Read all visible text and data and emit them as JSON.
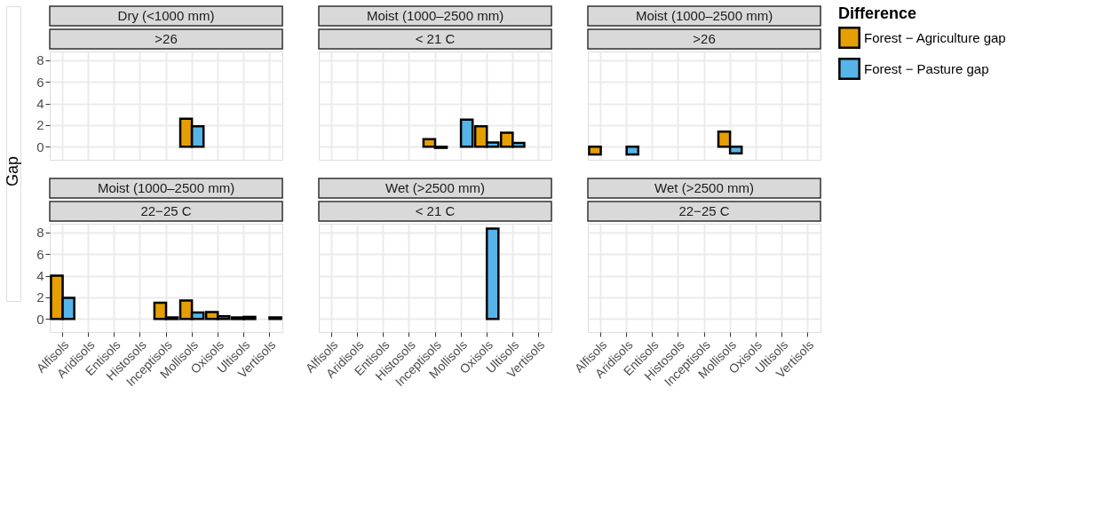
{
  "chart_data": [
    {
      "type": "bar",
      "title": "Dry (<1000 mm)",
      "subtitle": ">26",
      "ylabel": "Gap",
      "legend_title": "Difference",
      "legend": "right",
      "grid": true,
      "tick_labels": "y",
      "ylim": [
        -1.2,
        8.8
      ],
      "yticks": [
        0,
        2,
        4,
        6,
        8
      ],
      "categories": [
        "Alfisols",
        "Aridisols",
        "Entisols",
        "Histosols",
        "Inceptisols",
        "Mollisols",
        "Oxisols",
        "Ultisols",
        "Vertisols"
      ],
      "series": [
        {
          "name": "Forest − Agriculture gap",
          "color": "#e69f00",
          "values": [
            null,
            null,
            null,
            null,
            null,
            2.6,
            null,
            null,
            null
          ]
        },
        {
          "name": "Forest − Pasture gap",
          "color": "#56b4e9",
          "values": [
            null,
            null,
            null,
            null,
            null,
            1.9,
            null,
            null,
            null
          ]
        }
      ]
    },
    {
      "type": "bar",
      "title": "Moist (1000–2500 mm)",
      "subtitle": "< 21 C",
      "grid": true,
      "tick_labels": false,
      "ylim": [
        -1.2,
        8.8
      ],
      "yticks": [
        0,
        2,
        4,
        6,
        8
      ],
      "categories": [
        "Alfisols",
        "Aridisols",
        "Entisols",
        "Histosols",
        "Inceptisols",
        "Mollisols",
        "Oxisols",
        "Ultisols",
        "Vertisols"
      ],
      "series": [
        {
          "name": "Forest − Agriculture gap",
          "color": "#e69f00",
          "values": [
            null,
            null,
            null,
            null,
            0.7,
            null,
            1.9,
            1.3,
            null
          ]
        },
        {
          "name": "Forest − Pasture gap",
          "color": "#56b4e9",
          "values": [
            null,
            null,
            null,
            null,
            -0.1,
            2.5,
            0.4,
            0.35,
            null
          ]
        }
      ]
    },
    {
      "type": "bar",
      "title": "Moist (1000–2500 mm)",
      "subtitle": ">26",
      "grid": true,
      "tick_labels": false,
      "ylim": [
        -1.2,
        8.8
      ],
      "yticks": [
        0,
        2,
        4,
        6,
        8
      ],
      "categories": [
        "Alfisols",
        "Aridisols",
        "Entisols",
        "Histosols",
        "Inceptisols",
        "Mollisols",
        "Oxisols",
        "Ultisols",
        "Vertisols"
      ],
      "series": [
        {
          "name": "Forest − Agriculture gap",
          "color": "#e69f00",
          "values": [
            -0.7,
            null,
            null,
            null,
            null,
            1.4,
            null,
            null,
            null
          ]
        },
        {
          "name": "Forest − Pasture gap",
          "color": "#56b4e9",
          "values": [
            null,
            -0.7,
            null,
            null,
            null,
            -0.6,
            null,
            null,
            null
          ]
        }
      ]
    },
    {
      "type": "bar",
      "title": "Moist (1000–2500 mm)",
      "subtitle": "22−25 C",
      "grid": true,
      "ylim": [
        -1.2,
        8.8
      ],
      "yticks": [
        0,
        2,
        4,
        6,
        8
      ],
      "categories": [
        "Alfisols",
        "Aridisols",
        "Entisols",
        "Histosols",
        "Inceptisols",
        "Mollisols",
        "Oxisols",
        "Ultisols",
        "Vertisols"
      ],
      "series": [
        {
          "name": "Forest − Agriculture gap",
          "color": "#e69f00",
          "values": [
            4.0,
            null,
            null,
            null,
            1.5,
            1.7,
            0.65,
            0.15,
            null
          ]
        },
        {
          "name": "Forest − Pasture gap",
          "color": "#56b4e9",
          "values": [
            1.95,
            null,
            null,
            null,
            0.15,
            0.6,
            0.25,
            0.2,
            0.15
          ]
        }
      ]
    },
    {
      "type": "bar",
      "title": "Wet (>2500 mm)",
      "subtitle": "< 21 C",
      "grid": true,
      "tick_labels": "x",
      "ylim": [
        -1.2,
        8.8
      ],
      "yticks": [
        0,
        2,
        4,
        6,
        8
      ],
      "categories": [
        "Alfisols",
        "Aridisols",
        "Entisols",
        "Histosols",
        "Inceptisols",
        "Mollisols",
        "Oxisols",
        "Ultisols",
        "Vertisols"
      ],
      "series": [
        {
          "name": "Forest − Agriculture gap",
          "color": "#e69f00",
          "values": [
            null,
            null,
            null,
            null,
            null,
            null,
            null,
            null,
            null
          ]
        },
        {
          "name": "Forest − Pasture gap",
          "color": "#56b4e9",
          "values": [
            null,
            null,
            null,
            null,
            null,
            null,
            8.35,
            null,
            null
          ]
        }
      ]
    },
    {
      "type": "bar",
      "title": "Wet (>2500 mm)",
      "subtitle": "22−25 C",
      "grid": true,
      "tick_labels": "x",
      "ylim": [
        -1.2,
        8.8
      ],
      "yticks": [
        0,
        2,
        4,
        6,
        8
      ],
      "categories": [
        "Alfisols",
        "Aridisols",
        "Entisols",
        "Histosols",
        "Inceptisols",
        "Mollisols",
        "Oxisols",
        "Ultisols",
        "Vertisols"
      ],
      "series": [
        {
          "name": "Forest − Agriculture gap",
          "color": "#e69f00",
          "values": [
            null,
            null,
            null,
            null,
            null,
            null,
            null,
            null,
            null
          ]
        },
        {
          "name": "Forest − Pasture gap",
          "color": "#56b4e9",
          "values": [
            null,
            null,
            null,
            null,
            null,
            null,
            null,
            null,
            null
          ]
        }
      ]
    }
  ]
}
